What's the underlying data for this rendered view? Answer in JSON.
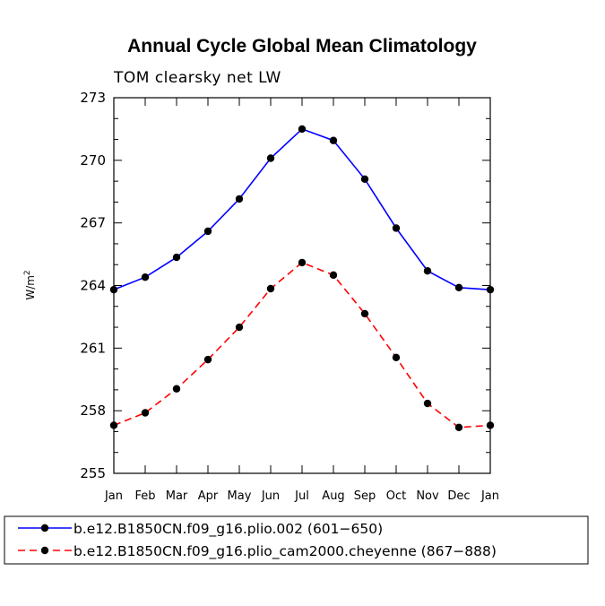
{
  "chart_data": {
    "type": "line",
    "title": "Annual Cycle Global Mean Climatology",
    "subtitle": "TOM clearsky net LW",
    "xlabel": "",
    "ylabel": "W/m",
    "ylabel_exponent": "2",
    "categories": [
      "Jan",
      "Feb",
      "Mar",
      "Apr",
      "May",
      "Jun",
      "Jul",
      "Aug",
      "Sep",
      "Oct",
      "Nov",
      "Dec",
      "Jan"
    ],
    "ylim": [
      255,
      273
    ],
    "yticks": [
      255,
      258,
      261,
      264,
      267,
      270,
      273
    ],
    "grid": false,
    "legend_position": "bottom",
    "series": [
      {
        "name": "b.e12.B1850CN.f09_g16.plio.002 (601−650)",
        "color": "#0000ff",
        "line_style": "solid",
        "marker": "circle",
        "values": [
          263.8,
          264.4,
          265.35,
          266.6,
          268.15,
          270.1,
          271.5,
          270.95,
          269.1,
          266.75,
          264.7,
          263.9,
          263.8
        ]
      },
      {
        "name": "b.e12.B1850CN.f09_g16.plio_cam2000.cheyenne (867−888)",
        "color": "#ff0000",
        "line_style": "dashed",
        "marker": "circle",
        "values": [
          257.3,
          257.9,
          259.05,
          260.45,
          262.0,
          263.85,
          265.1,
          264.5,
          262.65,
          260.55,
          258.35,
          257.2,
          257.3
        ]
      }
    ]
  }
}
